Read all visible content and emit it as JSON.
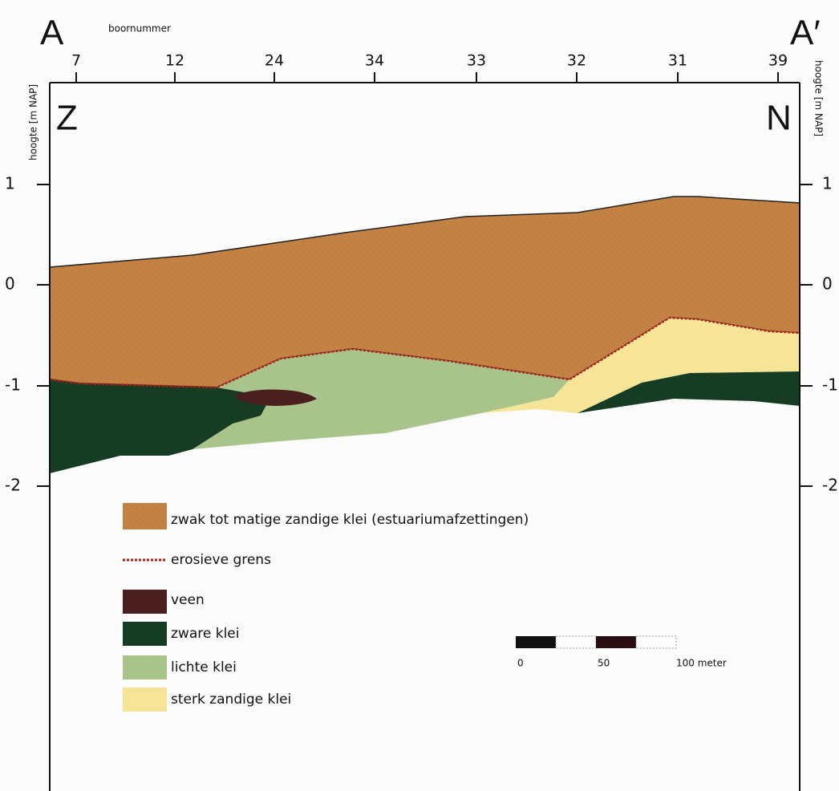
{
  "header": {
    "start": "A",
    "end": "A′",
    "borehole_title": "boornummer",
    "south": "Z",
    "north": "N"
  },
  "boreholes": [
    "7",
    "12",
    "24",
    "34",
    "33",
    "32",
    "31",
    "39"
  ],
  "axis": {
    "left_label": "hoogte [m NAP]",
    "right_label": "hoogte [m NAP]",
    "ticks": [
      "1",
      "0",
      "-1",
      "-2"
    ]
  },
  "legend": [
    {
      "label": "zwak tot matige zandige klei (estuariumafzettingen)"
    },
    {
      "label": "erosieve grens"
    },
    {
      "label": "veen"
    },
    {
      "label": "zware klei"
    },
    {
      "label": "lichte klei"
    },
    {
      "label": "sterk zandige klei"
    }
  ],
  "scale": {
    "labels": [
      "0",
      "50",
      "100 meter"
    ]
  }
}
